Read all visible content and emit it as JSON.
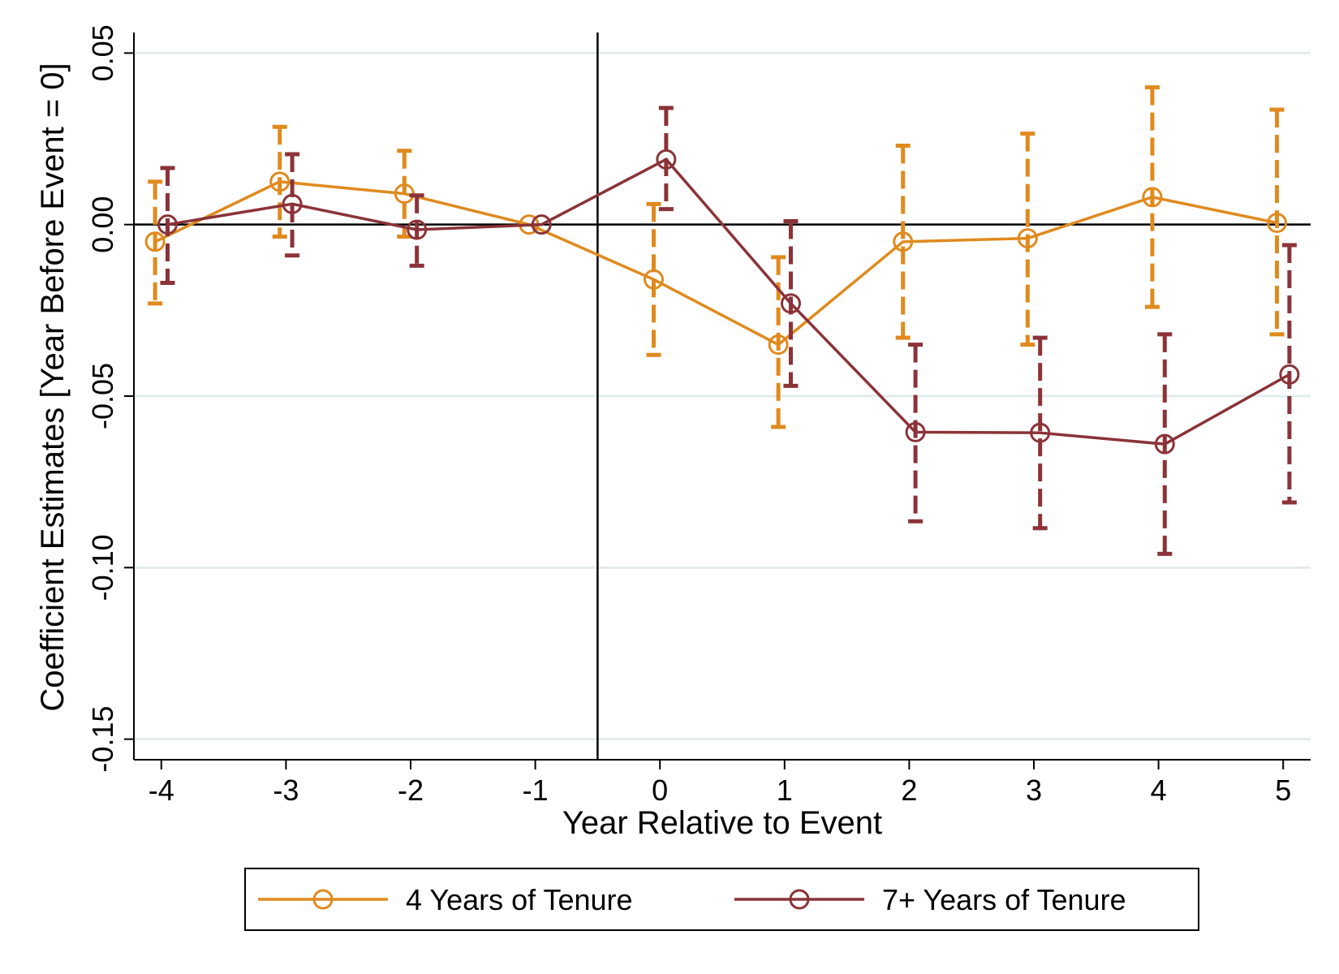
{
  "chart_data": {
    "type": "line",
    "title": "",
    "xlabel": "Year Relative to Event",
    "ylabel": "Coefficient Estimates [Year Before Event = 0]",
    "x": [
      -4,
      -3,
      -2,
      -1,
      0,
      1,
      2,
      3,
      4,
      5
    ],
    "x_ticks": [
      "-4",
      "-3",
      "-2",
      "-1",
      "0",
      "1",
      "2",
      "3",
      "4",
      "5"
    ],
    "y_ticks": [
      "0.05",
      "0.00",
      "-0.05",
      "-0.10",
      "-0.15"
    ],
    "y_tick_values": [
      0.05,
      0.0,
      -0.05,
      -0.1,
      -0.15
    ],
    "ylim": [
      -0.156,
      0.056
    ],
    "xlim": [
      -4.22,
      5.22
    ],
    "vertical_reference_line_x": -0.5,
    "horizontal_reference_line_y": 0,
    "grid": "horizontal",
    "legend_position": "bottom",
    "series": [
      {
        "name": "4 Years of Tenure",
        "color": "#E08A1E",
        "x_offset": -0.05,
        "values": [
          -0.005,
          0.0125,
          0.009,
          0.0,
          -0.016,
          -0.035,
          -0.005,
          -0.004,
          0.008,
          0.0005
        ],
        "ci_lower": [
          -0.023,
          -0.0035,
          -0.0035,
          0.0,
          -0.038,
          -0.059,
          -0.033,
          -0.035,
          -0.024,
          -0.032
        ],
        "ci_upper": [
          0.0125,
          0.0285,
          0.0215,
          0.0,
          0.006,
          -0.0095,
          0.023,
          0.0265,
          0.04,
          0.0335
        ]
      },
      {
        "name": "7+ Years of Tenure",
        "color": "#8B3338",
        "x_offset": 0.05,
        "values": [
          0.0,
          0.006,
          -0.0015,
          0.0,
          0.019,
          -0.023,
          -0.0605,
          -0.0607,
          -0.064,
          -0.0437
        ],
        "ci_lower": [
          -0.017,
          -0.009,
          -0.012,
          0.0,
          0.0045,
          -0.047,
          -0.0865,
          -0.0885,
          -0.096,
          -0.081
        ],
        "ci_upper": [
          0.0165,
          0.0205,
          0.0085,
          0.0,
          0.034,
          0.001,
          -0.035,
          -0.033,
          -0.032,
          -0.006
        ]
      }
    ]
  }
}
